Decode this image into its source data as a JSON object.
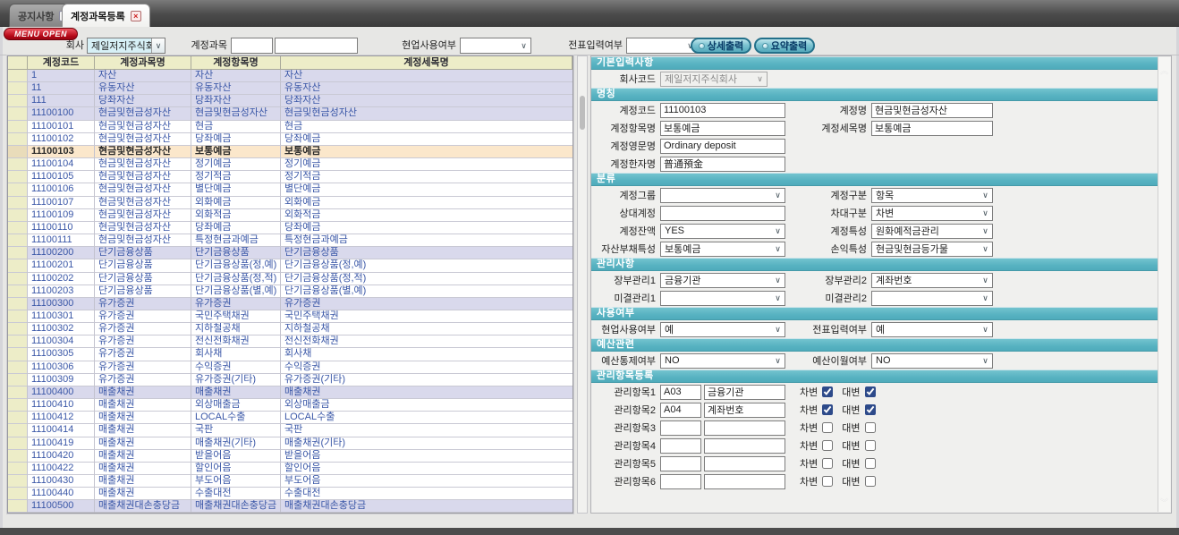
{
  "tabs": [
    {
      "label": "공지사항",
      "active": false
    },
    {
      "label": "계정과목등록",
      "active": true
    }
  ],
  "menu_open_label": "MENU OPEN",
  "toolbar": {
    "company_label": "회사",
    "company_value": "제일저지주식회사",
    "account_label": "계정과목",
    "account_value1": "",
    "account_value2": "",
    "field_use_label": "현업사용여부",
    "field_use_value": "",
    "slip_input_label": "전표입력여부",
    "slip_input_value": "",
    "detail_print_label": "상세출력",
    "summary_print_label": "요약출력"
  },
  "grid": {
    "headers": [
      "계정코드",
      "계정과목명",
      "계정항목명",
      "계정세목명"
    ],
    "rows": [
      {
        "code": "1",
        "name1": "자산",
        "name2": "자산",
        "name3": "자산",
        "style": "group"
      },
      {
        "code": "11",
        "name1": "유동자산",
        "name2": "유동자산",
        "name3": "유동자산",
        "style": "group"
      },
      {
        "code": "111",
        "name1": "당좌자산",
        "name2": "당좌자산",
        "name3": "당좌자산",
        "style": "group"
      },
      {
        "code": "11100100",
        "name1": "현금및현금성자산",
        "name2": "현금및현금성자산",
        "name3": "현금및현금성자산",
        "style": "group"
      },
      {
        "code": "11100101",
        "name1": "현금및현금성자산",
        "name2": "현금",
        "name3": "현금",
        "style": "normal"
      },
      {
        "code": "11100102",
        "name1": "현금및현금성자산",
        "name2": "당좌예금",
        "name3": "당좌예금",
        "style": "normal"
      },
      {
        "code": "11100103",
        "name1": "현금및현금성자산",
        "name2": "보통예금",
        "name3": "보통예금",
        "style": "selected"
      },
      {
        "code": "11100104",
        "name1": "현금및현금성자산",
        "name2": "정기예금",
        "name3": "정기예금",
        "style": "normal"
      },
      {
        "code": "11100105",
        "name1": "현금및현금성자산",
        "name2": "정기적금",
        "name3": "정기적금",
        "style": "normal"
      },
      {
        "code": "11100106",
        "name1": "현금및현금성자산",
        "name2": "별단예금",
        "name3": "별단예금",
        "style": "normal"
      },
      {
        "code": "11100107",
        "name1": "현금및현금성자산",
        "name2": "외화예금",
        "name3": "외화예금",
        "style": "normal"
      },
      {
        "code": "11100109",
        "name1": "현금및현금성자산",
        "name2": "외화적금",
        "name3": "외화적금",
        "style": "normal"
      },
      {
        "code": "11100110",
        "name1": "현금및현금성자산",
        "name2": "당좌예금",
        "name3": "당좌예금",
        "style": "normal"
      },
      {
        "code": "11100111",
        "name1": "현금및현금성자산",
        "name2": "특정현금과예금",
        "name3": "특정현금과예금",
        "style": "normal"
      },
      {
        "code": "11100200",
        "name1": "단기금융상품",
        "name2": "단기금융상품",
        "name3": "단기금융상품",
        "style": "group"
      },
      {
        "code": "11100201",
        "name1": "단기금융상품",
        "name2": "단기금융상품(정,예)",
        "name3": "단기금융상품(정,예)",
        "style": "normal"
      },
      {
        "code": "11100202",
        "name1": "단기금융상품",
        "name2": "단기금융상품(정,적)",
        "name3": "단기금융상품(정,적)",
        "style": "normal"
      },
      {
        "code": "11100203",
        "name1": "단기금융상품",
        "name2": "단기금융상품(별,예)",
        "name3": "단기금융상품(별,예)",
        "style": "normal"
      },
      {
        "code": "11100300",
        "name1": "유가증권",
        "name2": "유가증권",
        "name3": "유가증권",
        "style": "group"
      },
      {
        "code": "11100301",
        "name1": "유가증권",
        "name2": "국민주택채권",
        "name3": "국민주택채권",
        "style": "normal"
      },
      {
        "code": "11100302",
        "name1": "유가증권",
        "name2": "지하철공채",
        "name3": "지하철공채",
        "style": "normal"
      },
      {
        "code": "11100304",
        "name1": "유가증권",
        "name2": "전신전화채권",
        "name3": "전신전화채권",
        "style": "normal"
      },
      {
        "code": "11100305",
        "name1": "유가증권",
        "name2": "회사채",
        "name3": "회사채",
        "style": "normal"
      },
      {
        "code": "11100306",
        "name1": "유가증권",
        "name2": "수익증권",
        "name3": "수익증권",
        "style": "normal"
      },
      {
        "code": "11100309",
        "name1": "유가증권",
        "name2": "유가증권(기타)",
        "name3": "유가증권(기타)",
        "style": "normal"
      },
      {
        "code": "11100400",
        "name1": "매출채권",
        "name2": "매출채권",
        "name3": "매출채권",
        "style": "group"
      },
      {
        "code": "11100410",
        "name1": "매출채권",
        "name2": "외상매출금",
        "name3": "외상매출금",
        "style": "normal"
      },
      {
        "code": "11100412",
        "name1": "매출채권",
        "name2": "LOCAL수출",
        "name3": "LOCAL수출",
        "style": "normal"
      },
      {
        "code": "11100414",
        "name1": "매출채권",
        "name2": "국판",
        "name3": "국판",
        "style": "normal"
      },
      {
        "code": "11100419",
        "name1": "매출채권",
        "name2": "매출채권(기타)",
        "name3": "매출채권(기타)",
        "style": "normal"
      },
      {
        "code": "11100420",
        "name1": "매출채권",
        "name2": "받을어음",
        "name3": "받을어음",
        "style": "normal"
      },
      {
        "code": "11100422",
        "name1": "매출채권",
        "name2": "할인어음",
        "name3": "할인어음",
        "style": "normal"
      },
      {
        "code": "11100430",
        "name1": "매출채권",
        "name2": "부도어음",
        "name3": "부도어음",
        "style": "normal"
      },
      {
        "code": "11100440",
        "name1": "매출채권",
        "name2": "수출대전",
        "name3": "수출대전",
        "style": "normal"
      },
      {
        "code": "11100500",
        "name1": "매출채권대손충당금",
        "name2": "매출채권대손충당금",
        "name3": "매출채권대손충당금",
        "style": "group"
      }
    ]
  },
  "detail": {
    "sections": [
      {
        "title": "기본입력사항",
        "rows": [
          [
            {
              "label": "회사코드",
              "kind": "select",
              "value": "제일저지주식회사",
              "disabled": true,
              "w": 120
            }
          ]
        ]
      },
      {
        "title": "명칭",
        "rows": [
          [
            {
              "label": "계정코드",
              "kind": "input",
              "value": "11100103"
            },
            {
              "label": "계정명",
              "kind": "input",
              "value": "현금및현금성자산"
            }
          ],
          [
            {
              "label": "계정항목명",
              "kind": "input",
              "value": "보통예금"
            },
            {
              "label": "계정세목명",
              "kind": "input",
              "value": "보통예금"
            }
          ],
          [
            {
              "label": "계정영문명",
              "kind": "input",
              "value": "Ordinary deposit"
            }
          ],
          [
            {
              "label": "계정한자명",
              "kind": "input",
              "value": "普通預金"
            }
          ]
        ]
      },
      {
        "title": "분류",
        "rows": [
          [
            {
              "label": "계정그룹",
              "kind": "select",
              "value": ""
            },
            {
              "label": "계정구분",
              "kind": "select",
              "value": "항목"
            }
          ],
          [
            {
              "label": "상대계정",
              "kind": "input",
              "value": ""
            },
            {
              "label": "차대구분",
              "kind": "select",
              "value": "차변"
            }
          ],
          [
            {
              "label": "계정잔액",
              "kind": "select",
              "value": "YES"
            },
            {
              "label": "계정특성",
              "kind": "select",
              "value": "원화예적금관리"
            }
          ],
          [
            {
              "label": "자산부채특성",
              "kind": "select",
              "value": "보통예금"
            },
            {
              "label": "손익특성",
              "kind": "select",
              "value": "현금및현금등가물"
            }
          ]
        ]
      },
      {
        "title": "관리사항",
        "rows": [
          [
            {
              "label": "장부관리1",
              "kind": "select",
              "value": "금융기관"
            },
            {
              "label": "장부관리2",
              "kind": "select",
              "value": "계좌번호"
            }
          ],
          [
            {
              "label": "미결관리1",
              "kind": "select",
              "value": ""
            },
            {
              "label": "미결관리2",
              "kind": "select",
              "value": ""
            }
          ]
        ]
      },
      {
        "title": "사용여부",
        "rows": [
          [
            {
              "label": "현업사용여부",
              "kind": "select",
              "value": "예"
            },
            {
              "label": "전표입력여부",
              "kind": "select",
              "value": "예"
            }
          ]
        ]
      },
      {
        "title": "예산관련",
        "rows": [
          [
            {
              "label": "예산통제여부",
              "kind": "select",
              "value": "NO"
            },
            {
              "label": "예산이월여부",
              "kind": "select",
              "value": "NO"
            }
          ]
        ]
      }
    ],
    "mgmt": {
      "title": "관리항목등록",
      "debit_label": "차변",
      "credit_label": "대변",
      "rows": [
        {
          "label": "관리항목1",
          "code": "A03",
          "name": "금융기관",
          "debit": true,
          "credit": true
        },
        {
          "label": "관리항목2",
          "code": "A04",
          "name": "계좌번호",
          "debit": true,
          "credit": true
        },
        {
          "label": "관리항목3",
          "code": "",
          "name": "",
          "debit": false,
          "credit": false
        },
        {
          "label": "관리항목4",
          "code": "",
          "name": "",
          "debit": false,
          "credit": false
        },
        {
          "label": "관리항목5",
          "code": "",
          "name": "",
          "debit": false,
          "credit": false
        },
        {
          "label": "관리항목6",
          "code": "",
          "name": "",
          "debit": false,
          "credit": false
        }
      ]
    }
  }
}
